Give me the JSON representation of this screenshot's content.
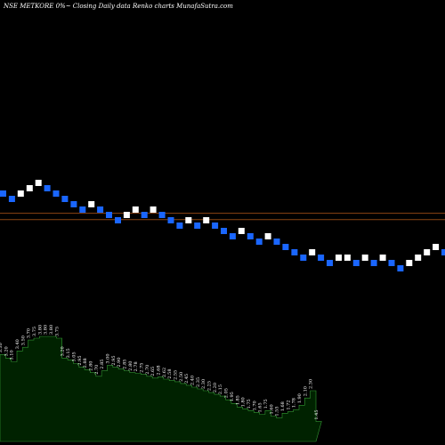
{
  "chart_data": {
    "type": "renko",
    "title": "NSE METKORE 0%~  Closing Daily data  Renko  charts MunafaSutra.com",
    "colors": {
      "background": "#000000",
      "up_brick": "#ffffff",
      "down_brick": "#1a66ff",
      "reference_line": "#8b4513",
      "volume_fill": "#002200",
      "volume_stroke": "#339933"
    },
    "bricks": [
      {
        "dir": "down",
        "level": 100
      },
      {
        "dir": "down",
        "level": 99
      },
      {
        "dir": "up",
        "level": 100
      },
      {
        "dir": "up",
        "level": 101
      },
      {
        "dir": "up",
        "level": 102
      },
      {
        "dir": "down",
        "level": 101
      },
      {
        "dir": "down",
        "level": 100
      },
      {
        "dir": "down",
        "level": 99
      },
      {
        "dir": "down",
        "level": 98
      },
      {
        "dir": "down",
        "level": 97
      },
      {
        "dir": "up",
        "level": 98
      },
      {
        "dir": "down",
        "level": 97
      },
      {
        "dir": "down",
        "level": 96
      },
      {
        "dir": "down",
        "level": 95
      },
      {
        "dir": "up",
        "level": 96
      },
      {
        "dir": "up",
        "level": 97
      },
      {
        "dir": "down",
        "level": 96
      },
      {
        "dir": "up",
        "level": 97
      },
      {
        "dir": "down",
        "level": 96
      },
      {
        "dir": "down",
        "level": 95
      },
      {
        "dir": "down",
        "level": 94
      },
      {
        "dir": "up",
        "level": 95
      },
      {
        "dir": "down",
        "level": 94
      },
      {
        "dir": "up",
        "level": 95
      },
      {
        "dir": "down",
        "level": 94
      },
      {
        "dir": "down",
        "level": 93
      },
      {
        "dir": "down",
        "level": 92
      },
      {
        "dir": "up",
        "level": 93
      },
      {
        "dir": "down",
        "level": 92
      },
      {
        "dir": "down",
        "level": 91
      },
      {
        "dir": "up",
        "level": 92
      },
      {
        "dir": "down",
        "level": 91
      },
      {
        "dir": "down",
        "level": 90
      },
      {
        "dir": "down",
        "level": 89
      },
      {
        "dir": "down",
        "level": 88
      },
      {
        "dir": "up",
        "level": 89
      },
      {
        "dir": "down",
        "level": 88
      },
      {
        "dir": "down",
        "level": 87
      },
      {
        "dir": "up",
        "level": 88
      },
      {
        "dir": "up",
        "level": 88
      },
      {
        "dir": "down",
        "level": 87
      },
      {
        "dir": "up",
        "level": 88
      },
      {
        "dir": "down",
        "level": 87
      },
      {
        "dir": "up",
        "level": 88
      },
      {
        "dir": "down",
        "level": 87
      },
      {
        "dir": "down",
        "level": 86
      },
      {
        "dir": "up",
        "level": 87
      },
      {
        "dir": "up",
        "level": 88
      },
      {
        "dir": "up",
        "level": 89
      },
      {
        "dir": "up",
        "level": 90
      },
      {
        "dir": "down",
        "level": 89
      }
    ],
    "reference_levels": [
      95.4,
      94.2
    ],
    "volume_labels": [
      "3.30",
      "3.20",
      "3.10",
      "3.40",
      "3.50",
      "3.70",
      "3.75",
      "3.80",
      "3.80",
      "3.80",
      "3.75",
      "3.20",
      "3.15",
      "3.05",
      "2.95",
      "2.88",
      "2.80",
      "2.70",
      "2.85",
      "3.00",
      "2.95",
      "2.90",
      "2.85",
      "2.80",
      "2.78",
      "2.75",
      "2.70",
      "2.65",
      "2.68",
      "2.62",
      "2.58",
      "2.55",
      "2.50",
      "2.45",
      "2.40",
      "2.35",
      "2.30",
      "2.25",
      "2.20",
      "2.15",
      "2.05",
      "1.95",
      "1.85",
      "1.80",
      "1.75",
      "1.70",
      "1.65",
      "1.75",
      "1.60",
      "1.55",
      "1.68",
      "1.72",
      "1.78",
      "1.90",
      "2.10",
      "2.30",
      "1.45"
    ],
    "volume_values": [
      3.3,
      3.2,
      3.1,
      3.4,
      3.5,
      3.7,
      3.75,
      3.8,
      3.8,
      3.8,
      3.75,
      3.2,
      3.15,
      3.05,
      2.95,
      2.88,
      2.8,
      2.7,
      2.85,
      3.0,
      2.95,
      2.9,
      2.85,
      2.8,
      2.78,
      2.75,
      2.7,
      2.65,
      2.68,
      2.62,
      2.58,
      2.55,
      2.5,
      2.45,
      2.4,
      2.35,
      2.3,
      2.25,
      2.2,
      2.15,
      2.05,
      1.95,
      1.85,
      1.8,
      1.75,
      1.7,
      1.65,
      1.75,
      1.6,
      1.55,
      1.68,
      1.72,
      1.78,
      1.9,
      2.1,
      2.3,
      1.45
    ]
  }
}
